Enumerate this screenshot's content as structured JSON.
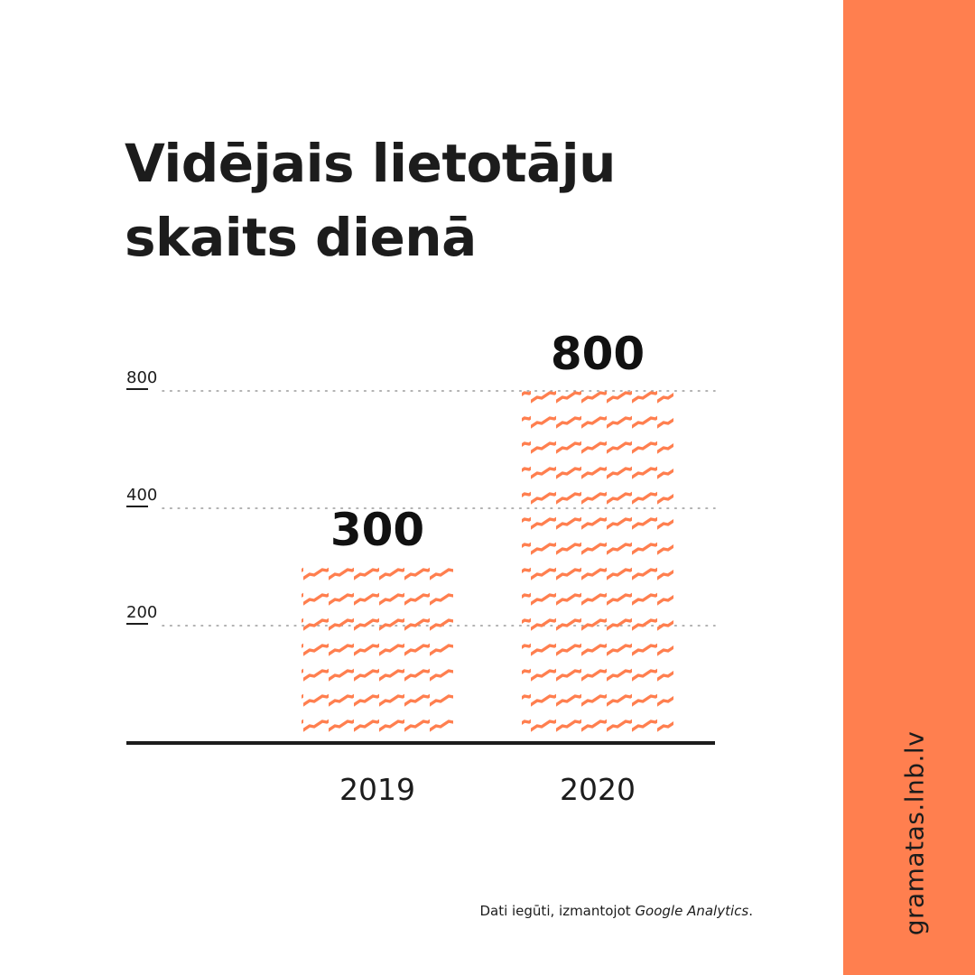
{
  "title_lines": [
    "Vidējais lietotāju",
    "skaits dienā"
  ],
  "source_note": {
    "prefix": "Dati iegūti, izmantojot ",
    "emphasis": "Google Analytics",
    "suffix": "."
  },
  "side_url": "gramatas.lnb.lv",
  "colors": {
    "accent": "#ff7f4f",
    "text": "#1c1c1c",
    "background": "#ffffff",
    "grid": "#9a9a9a"
  },
  "chart_data": {
    "type": "bar",
    "categories": [
      "2019",
      "2020"
    ],
    "values": [
      300,
      800
    ],
    "data_labels": [
      "300",
      "800"
    ],
    "y_ticks": [
      {
        "label": "200",
        "value": 200
      },
      {
        "label": "400",
        "value": 400
      },
      {
        "label": "800",
        "value": 800
      }
    ],
    "grid": "dotted horizontal lines at tick values",
    "bar_fill": "orange zigzag diagonal hatch pattern"
  }
}
